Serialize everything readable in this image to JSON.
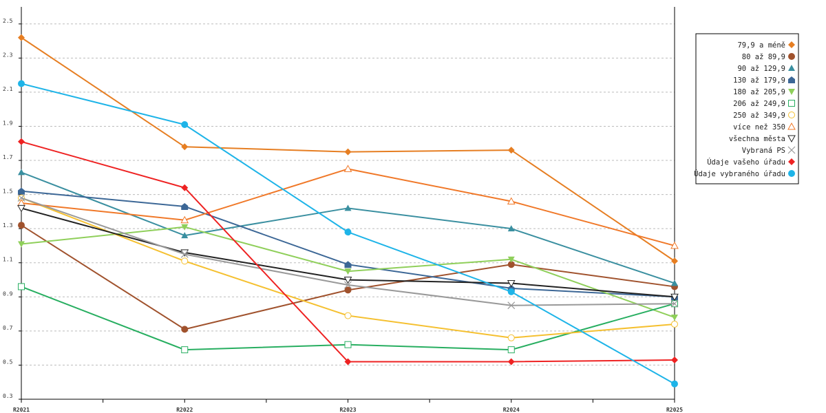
{
  "chart_data": {
    "type": "line",
    "categories": [
      "R2021",
      "R2022",
      "R2023",
      "R2024",
      "R2025"
    ],
    "ylim": [
      0.3,
      2.6
    ],
    "y_ticks": [
      0.3,
      0.5,
      0.7,
      0.9,
      1.1,
      1.3,
      1.5,
      1.7,
      1.9,
      2.1,
      2.3,
      2.5
    ],
    "y_tick_labels": [
      "0.3",
      "0.5",
      "0.7",
      "0.9",
      "1.1",
      "1.3",
      "1.5",
      "1.7",
      "1.9",
      "2.1",
      "2.3",
      "2.5"
    ],
    "grid": true,
    "legend_position": "right",
    "series": [
      {
        "name": "79,9 a méně",
        "color": "#e67e22",
        "marker": "diamond",
        "values": [
          2.42,
          1.78,
          1.75,
          1.76,
          1.11
        ]
      },
      {
        "name": "80 až 89,9",
        "color": "#a0522d",
        "marker": "circle",
        "values": [
          1.32,
          0.71,
          0.94,
          1.09,
          0.96
        ]
      },
      {
        "name": "90 až 129,9",
        "color": "#3a8fa0",
        "marker": "triangle-up",
        "values": [
          1.63,
          1.26,
          1.42,
          1.3,
          0.98
        ]
      },
      {
        "name": "130 až 179,9",
        "color": "#3c6796",
        "marker": "pentagon",
        "values": [
          1.52,
          1.43,
          1.09,
          0.95,
          0.9
        ]
      },
      {
        "name": "180 až 205,9",
        "color": "#8fcf5a",
        "marker": "triangle-down",
        "values": [
          1.21,
          1.31,
          1.05,
          1.12,
          0.78
        ]
      },
      {
        "name": "206 až 249,9",
        "color": "#27ae60",
        "marker": "square-open",
        "values": [
          0.96,
          0.59,
          0.62,
          0.59,
          0.86
        ]
      },
      {
        "name": "250 až 349,9",
        "color": "#f5c030",
        "marker": "circle-open",
        "values": [
          1.48,
          1.11,
          0.79,
          0.66,
          0.74
        ]
      },
      {
        "name": "více než 350",
        "color": "#f07828",
        "marker": "triangle-up-open",
        "values": [
          1.45,
          1.35,
          1.65,
          1.46,
          1.2
        ]
      },
      {
        "name": "všechna města",
        "color": "#222222",
        "marker": "triangle-down-open",
        "values": [
          1.42,
          1.16,
          1.0,
          0.98,
          0.9
        ]
      },
      {
        "name": "Vybraná PS",
        "color": "#999999",
        "marker": "x",
        "values": [
          1.48,
          1.15,
          0.97,
          0.85,
          0.86
        ]
      },
      {
        "name": "Údaje vašeho úřadu",
        "color": "#ee2222",
        "marker": "diamond",
        "values": [
          1.81,
          1.54,
          0.52,
          0.52,
          0.53
        ]
      },
      {
        "name": "Údaje vybraného úřadu",
        "color": "#1eb4e8",
        "marker": "circle",
        "values": [
          2.15,
          1.91,
          1.28,
          0.93,
          0.39
        ]
      }
    ]
  }
}
